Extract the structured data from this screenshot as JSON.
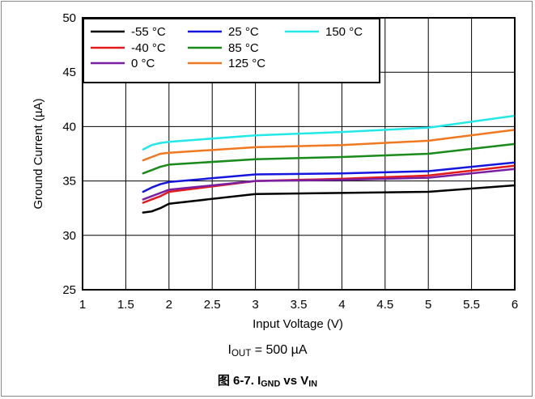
{
  "chart_data": {
    "type": "line",
    "xlabel": "Input Voltage (V)",
    "ylabel": "Ground Current (µA)",
    "xlim": [
      1,
      6
    ],
    "ylim": [
      25,
      50
    ],
    "xticks": [
      1,
      1.5,
      2,
      2.5,
      3,
      3.5,
      4,
      4.5,
      5,
      5.5,
      6
    ],
    "xtick_labels": [
      "1",
      "1.5",
      "2",
      "2.5",
      "3",
      "3.5",
      "4",
      "4.5",
      "5",
      "5.5",
      "6"
    ],
    "yticks": [
      25,
      30,
      35,
      40,
      45,
      50
    ],
    "ytick_labels": [
      "25",
      "30",
      "35",
      "40",
      "45",
      "50"
    ],
    "grid": true,
    "legend_position": "top-left",
    "series": [
      {
        "name": "-55 °C",
        "color": "#000000",
        "x": [
          1.7,
          1.8,
          1.9,
          2.0,
          3.0,
          4.0,
          5.0,
          6.0
        ],
        "y": [
          32.1,
          32.2,
          32.5,
          32.9,
          33.8,
          33.9,
          34.0,
          34.6
        ]
      },
      {
        "name": "-40 °C",
        "color": "#e31a1c",
        "x": [
          1.7,
          1.8,
          1.9,
          2.0,
          3.0,
          4.0,
          5.0,
          6.0
        ],
        "y": [
          33.0,
          33.3,
          33.6,
          34.0,
          35.0,
          35.2,
          35.5,
          36.4
        ]
      },
      {
        "name": "0 °C",
        "color": "#7b1fa2",
        "x": [
          1.7,
          1.8,
          1.9,
          2.0,
          3.0,
          4.0,
          5.0,
          6.0
        ],
        "y": [
          33.3,
          33.6,
          33.9,
          34.2,
          35.0,
          35.1,
          35.3,
          36.1
        ]
      },
      {
        "name": "25 °C",
        "color": "#1515e0",
        "x": [
          1.7,
          1.8,
          1.9,
          2.0,
          3.0,
          4.0,
          5.0,
          6.0
        ],
        "y": [
          34.0,
          34.4,
          34.7,
          34.9,
          35.6,
          35.7,
          35.9,
          36.7
        ]
      },
      {
        "name": "85 °C",
        "color": "#1a8a1a",
        "x": [
          1.7,
          1.8,
          1.9,
          2.0,
          3.0,
          4.0,
          5.0,
          6.0
        ],
        "y": [
          35.7,
          36.0,
          36.3,
          36.5,
          37.0,
          37.2,
          37.5,
          38.4
        ]
      },
      {
        "name": "125 °C",
        "color": "#f07820",
        "x": [
          1.7,
          1.8,
          1.9,
          2.0,
          3.0,
          4.0,
          5.0,
          6.0
        ],
        "y": [
          36.9,
          37.2,
          37.5,
          37.6,
          38.1,
          38.3,
          38.7,
          39.7
        ]
      },
      {
        "name": "150 °C",
        "color": "#22e8e8",
        "x": [
          1.7,
          1.8,
          1.9,
          2.0,
          3.0,
          4.0,
          5.0,
          6.0
        ],
        "y": [
          37.9,
          38.3,
          38.5,
          38.6,
          39.2,
          39.5,
          39.9,
          41.0
        ]
      }
    ]
  },
  "condition": {
    "prefix": "I",
    "sub": "OUT",
    "suffix": " = 500 µA"
  },
  "caption": {
    "prefix": "图 6-7. I",
    "sub1": "GND",
    "middle": " vs V",
    "sub2": "IN"
  }
}
